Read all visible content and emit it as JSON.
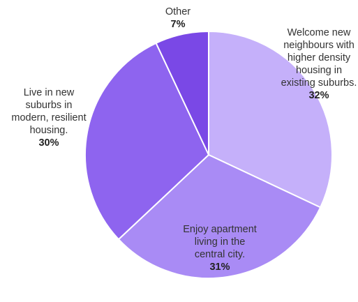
{
  "chart_data": {
    "type": "pie",
    "categories": [
      "Welcome new neighbours with higher density housing in existing suburbs.",
      "Enjoy apartment living in the central city.",
      "Live in new suburbs in modern, resilient housing.",
      "Other"
    ],
    "values": [
      32,
      31,
      30,
      7
    ],
    "value_labels": [
      "32%",
      "31%",
      "30%",
      "7%"
    ],
    "colors": [
      "#c5b0fa",
      "#a98bf5",
      "#8e64ef",
      "#7a48e6"
    ]
  }
}
